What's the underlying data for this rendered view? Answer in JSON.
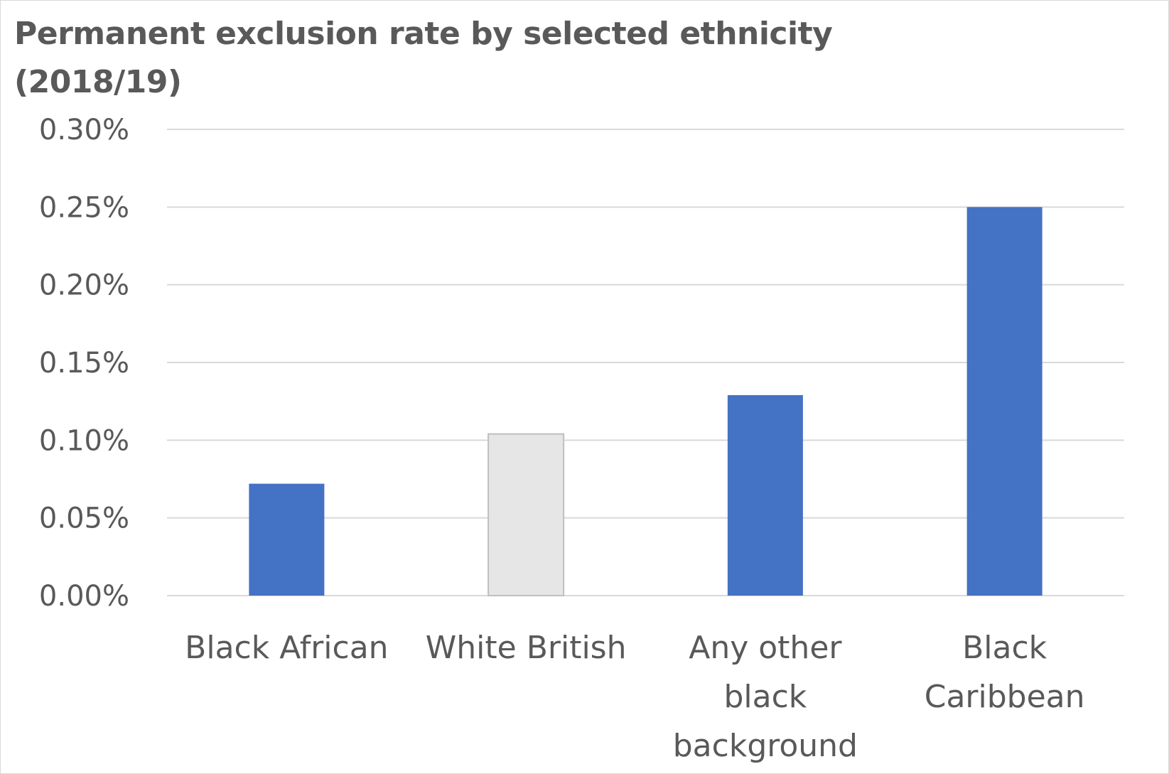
{
  "chart_data": {
    "type": "bar",
    "title": "Permanent exclusion rate by selected ethnicity (2018/19)",
    "xlabel": "",
    "ylabel": "",
    "categories": [
      [
        "Black African"
      ],
      [
        "White British"
      ],
      [
        "Any other",
        "black",
        "background"
      ],
      [
        "Black",
        "Caribbean"
      ]
    ],
    "category_names": [
      "Black African",
      "White British",
      "Any other black background",
      "Black Caribbean"
    ],
    "values": [
      0.072,
      0.104,
      0.129,
      0.25
    ],
    "y_ticks": [
      "0.00%",
      "0.05%",
      "0.10%",
      "0.15%",
      "0.20%",
      "0.25%",
      "0.30%"
    ],
    "ylim": [
      0,
      0.3
    ],
    "grid": true,
    "legend": "none",
    "colors": {
      "highlight": "#4472c4",
      "comparison_fill": "#e7e6e6",
      "comparison_stroke": "#bfbfbf",
      "gridline": "#d9d9d9",
      "text": "#595959"
    },
    "bar_colors": [
      "highlight",
      "comparison",
      "highlight",
      "highlight"
    ]
  }
}
